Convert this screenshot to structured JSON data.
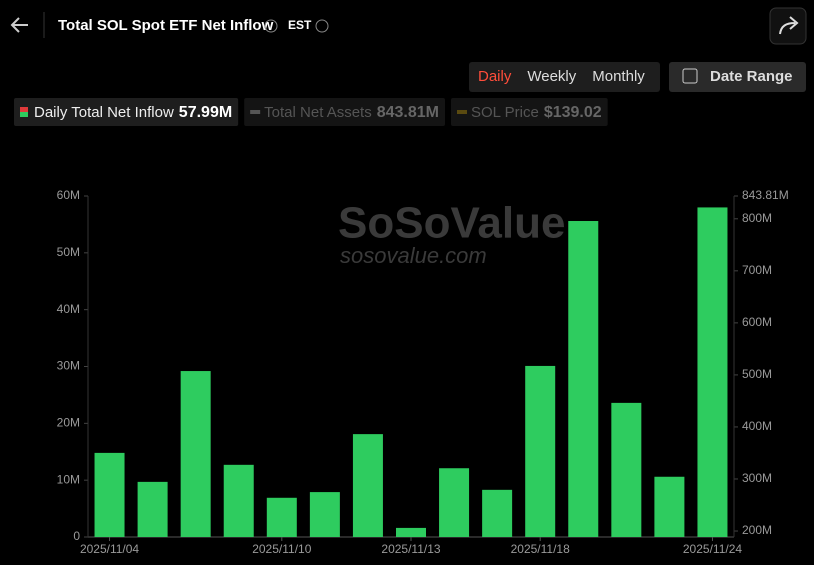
{
  "page": {
    "title": "Total SOL Spot ETF Net Inflow",
    "timezone": "EST",
    "periods": [
      "Daily",
      "Weekly",
      "Monthly"
    ],
    "active_period_index": 0,
    "date_range": "Date Range",
    "watermark": "SoSoValue",
    "watermark_url": "sosovalue.com"
  },
  "chart_data": {
    "type": "bar",
    "categories": [
      "2025/11/04",
      null,
      null,
      null,
      "2025/11/10",
      null,
      null,
      "2025/11/13",
      null,
      null,
      "2025/11/18",
      null,
      null,
      null,
      "2025/11/24"
    ],
    "series": [
      {
        "name": "Daily Total Net Inflow",
        "color": "#2ecc5f",
        "readout": "57.99M",
        "values": [
          14.8,
          9.7,
          29.2,
          12.7,
          6.9,
          7.9,
          18.1,
          1.6,
          12.1,
          8.3,
          30.1,
          55.6,
          23.6,
          10.6,
          57.99
        ]
      }
    ],
    "hidden_series": [
      {
        "name": "Total Net Assets",
        "readout": "843.81M",
        "color": "#555555"
      },
      {
        "name": "SOL Price",
        "readout": "$139.02",
        "color": "#5a4a10"
      }
    ],
    "ylim": [
      0,
      60
    ],
    "yticks": [
      {
        "value": 0,
        "label": "0"
      },
      {
        "value": 10,
        "label": "10M"
      },
      {
        "value": 20,
        "label": "20M"
      },
      {
        "value": 30,
        "label": "30M"
      },
      {
        "value": 40,
        "label": "40M"
      },
      {
        "value": 50,
        "label": "50M"
      },
      {
        "value": 60,
        "label": "60M"
      }
    ],
    "y2lim": [
      188.5,
      843.81
    ],
    "y2ticks": [
      {
        "value": 200,
        "label": "200M"
      },
      {
        "value": 300,
        "label": "300M"
      },
      {
        "value": 400,
        "label": "400M"
      },
      {
        "value": 500,
        "label": "500M"
      },
      {
        "value": 600,
        "label": "600M"
      },
      {
        "value": 700,
        "label": "700M"
      },
      {
        "value": 800,
        "label": "800M"
      },
      {
        "value": 843.81,
        "label": "843.81M"
      }
    ],
    "grid": false
  }
}
